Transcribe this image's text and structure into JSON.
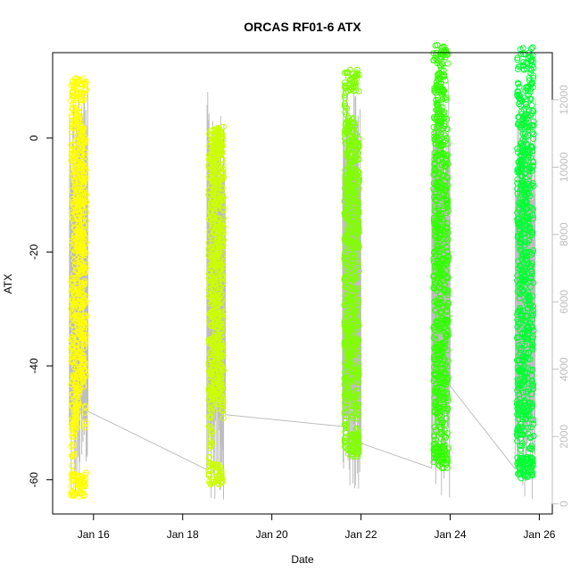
{
  "chart_data": {
    "type": "scatter",
    "title": "ORCAS RF01-6 ATX",
    "xlabel": "Date",
    "ylabel": "ATX",
    "x_is_date": true,
    "xlim": [
      "2016-01-15T02:00",
      "2016-01-26T07:00"
    ],
    "ylim": [
      -66,
      15
    ],
    "y2lim": [
      -300,
      13400
    ],
    "x_ticks": [
      {
        "value": "2016-01-16",
        "label": "Jan 16"
      },
      {
        "value": "2016-01-18",
        "label": "Jan 18"
      },
      {
        "value": "2016-01-20",
        "label": "Jan 20"
      },
      {
        "value": "2016-01-22",
        "label": "Jan 22"
      },
      {
        "value": "2016-01-24",
        "label": "Jan 24"
      },
      {
        "value": "2016-01-26",
        "label": "Jan 26"
      }
    ],
    "y_ticks": [
      {
        "value": 0,
        "label": "0"
      },
      {
        "value": -20,
        "label": "-20"
      },
      {
        "value": -40,
        "label": "-40"
      },
      {
        "value": -60,
        "label": "-60"
      }
    ],
    "y2_ticks": [
      {
        "value": 0,
        "label": "0"
      },
      {
        "value": 2000,
        "label": "2000"
      },
      {
        "value": 4000,
        "label": "4000"
      },
      {
        "value": 6000,
        "label": "6000"
      },
      {
        "value": 8000,
        "label": "8000"
      },
      {
        "value": 10000,
        "label": "10000"
      },
      {
        "value": 12000,
        "label": "12000"
      }
    ],
    "grid": false,
    "legend": "none",
    "series": [
      {
        "color": "#ffff00",
        "start": "2016-01-15T12:00",
        "end": "2016-01-15T20:00",
        "y_range": [
          -63,
          10.5
        ],
        "band": [
          [
            0.0,
            -60,
            10
          ],
          [
            0.15,
            -62,
            8
          ],
          [
            0.3,
            -55,
            5
          ],
          [
            0.45,
            -48,
            5
          ],
          [
            0.6,
            -45,
            6
          ],
          [
            0.75,
            -42,
            3
          ],
          [
            0.9,
            -45,
            1
          ],
          [
            1.0,
            -60,
            1
          ]
        ]
      },
      {
        "color": "#ccff00",
        "start": "2016-01-18T14:00",
        "end": "2016-01-18T22:00",
        "y_range": [
          -61,
          2
        ],
        "band": [
          [
            0.0,
            -60,
            0
          ],
          [
            0.15,
            -61,
            -3
          ],
          [
            0.3,
            -47,
            0
          ],
          [
            0.45,
            -45,
            -1
          ],
          [
            0.6,
            -48,
            1
          ],
          [
            0.75,
            -46,
            2
          ],
          [
            0.9,
            -47,
            0
          ],
          [
            1.0,
            -52,
            -5
          ]
        ]
      },
      {
        "color": "#80ff00",
        "start": "2016-01-21T15:00",
        "end": "2016-01-21T23:00",
        "y_range": [
          -56,
          12
        ],
        "band": [
          [
            0.0,
            -55,
            11
          ],
          [
            0.15,
            -53,
            6
          ],
          [
            0.3,
            -45,
            3
          ],
          [
            0.45,
            -46,
            4
          ],
          [
            0.6,
            -50,
            4
          ],
          [
            0.75,
            -48,
            2
          ],
          [
            0.9,
            -55,
            1
          ],
          [
            1.0,
            -56,
            0
          ]
        ]
      },
      {
        "color": "#33ff00",
        "start": "2016-01-23T15:00",
        "end": "2016-01-23T23:00",
        "y_range": [
          -58,
          16.5
        ],
        "band": [
          [
            0.0,
            -57,
            8
          ],
          [
            0.15,
            -55,
            10
          ],
          [
            0.3,
            -50,
            12
          ],
          [
            0.45,
            -52,
            14
          ],
          [
            0.6,
            -55,
            16
          ],
          [
            0.75,
            -58,
            15
          ],
          [
            0.9,
            -56,
            5
          ],
          [
            1.0,
            -45,
            -5
          ]
        ]
      },
      {
        "color": "#00ff33",
        "start": "2016-01-25T12:00",
        "end": "2016-01-25T21:00",
        "y_range": [
          -60,
          16
        ],
        "band": [
          [
            0.0,
            -60,
            10
          ],
          [
            0.15,
            -58,
            12
          ],
          [
            0.3,
            -55,
            5
          ],
          [
            0.45,
            -52,
            8
          ],
          [
            0.6,
            -50,
            10
          ],
          [
            0.75,
            -55,
            12
          ],
          [
            0.9,
            -58,
            16
          ],
          [
            1.0,
            -55,
            14
          ]
        ]
      }
    ],
    "secondary_line": {
      "color": "#bebebe",
      "segments": [
        {
          "start": "2016-01-15T11:00",
          "end": "2016-01-15T21:00",
          "low": -200,
          "high": 12500,
          "end_value": 2750
        },
        {
          "start": "2016-01-18T13:00",
          "end": "2016-01-18T23:00",
          "low": 100,
          "high": 12250,
          "end_value": 2650
        },
        {
          "start": "2016-01-21T14:00",
          "end": "2016-01-22T00:00",
          "low": 100,
          "high": 12500,
          "end_value": 1800
        },
        {
          "start": "2016-01-23T14:00",
          "end": "2016-01-24T00:00",
          "low": 100,
          "high": 12800,
          "end_value": 3500
        },
        {
          "start": "2016-01-25T11:00",
          "end": "2016-01-25T22:00",
          "low": 0,
          "high": 12000,
          "end_value": 12000
        }
      ]
    }
  }
}
